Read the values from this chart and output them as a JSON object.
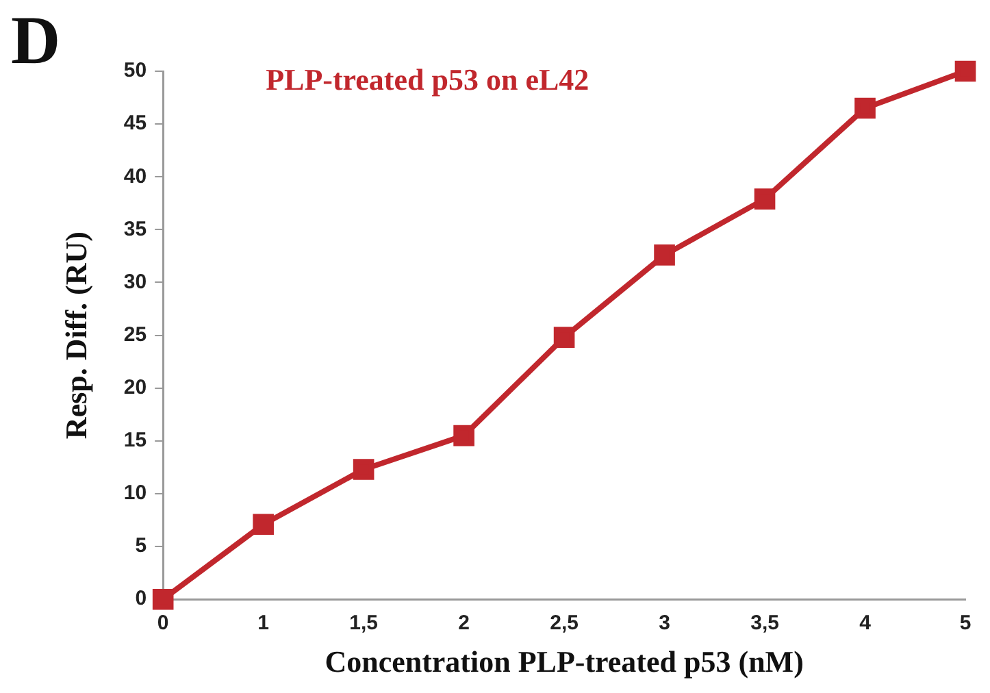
{
  "chart_data": {
    "type": "line",
    "title": "PLP-treated p53 on eL42",
    "xlabel": "Concentration PLP-treated p53 (nM)",
    "ylabel": "Resp. Diff. (RU)",
    "annotations": [
      "D"
    ],
    "categories": [
      "0",
      "1",
      "1,5",
      "2",
      "2,5",
      "3",
      "3,5",
      "4",
      "5"
    ],
    "series": [
      {
        "color": "#c1272d",
        "values": [
          0,
          7.1,
          12.3,
          15.5,
          24.8,
          32.6,
          37.9,
          46.5,
          50.0
        ]
      }
    ],
    "ylim": [
      0,
      50
    ],
    "yticks": [
      0,
      5,
      10,
      15,
      20,
      25,
      30,
      35,
      40,
      45,
      50
    ],
    "grid": false,
    "legend": false,
    "marker": "square",
    "line_style": "solid"
  }
}
